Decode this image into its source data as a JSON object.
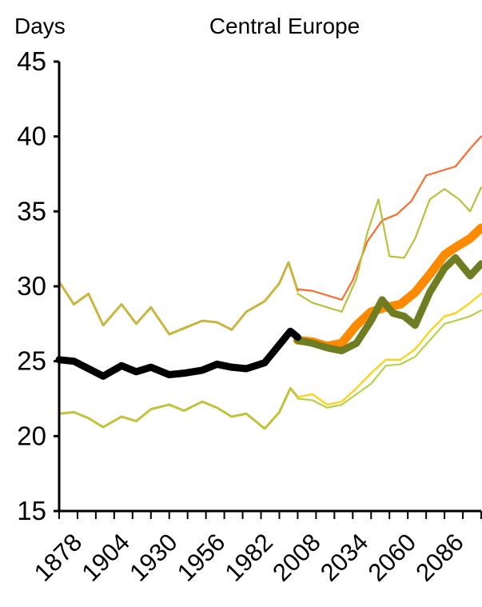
{
  "chart_data": {
    "type": "line",
    "title": "Central Europe",
    "ylabel": "Days",
    "xlabel": "",
    "ylim": [
      15,
      45
    ],
    "xlim": [
      1870,
      2100
    ],
    "y_ticks": [
      15,
      20,
      25,
      30,
      35,
      40,
      45
    ],
    "x_ticks": [
      1878,
      1904,
      1930,
      1956,
      1982,
      2008,
      2034,
      2060,
      2086
    ],
    "grid": false,
    "legend": "none",
    "series": [
      {
        "role": "observed-upper",
        "color": "#c9b540",
        "points": [
          [
            1870,
            30.3
          ],
          [
            1878,
            28.8
          ],
          [
            1886,
            29.5
          ],
          [
            1894,
            27.4
          ],
          [
            1904,
            28.8
          ],
          [
            1912,
            27.5
          ],
          [
            1920,
            28.6
          ],
          [
            1930,
            26.8
          ],
          [
            1938,
            27.2
          ],
          [
            1948,
            27.7
          ],
          [
            1956,
            27.6
          ],
          [
            1964,
            27.1
          ],
          [
            1972,
            28.3
          ],
          [
            1982,
            29.0
          ],
          [
            1990,
            30.2
          ],
          [
            1995,
            31.6
          ],
          [
            2000,
            29.7
          ]
        ]
      },
      {
        "role": "observed-lower",
        "color": "#c2c23a",
        "points": [
          [
            1870,
            21.5
          ],
          [
            1878,
            21.6
          ],
          [
            1886,
            21.2
          ],
          [
            1894,
            20.6
          ],
          [
            1904,
            21.3
          ],
          [
            1912,
            21.0
          ],
          [
            1920,
            21.8
          ],
          [
            1930,
            22.1
          ],
          [
            1938,
            21.7
          ],
          [
            1948,
            22.3
          ],
          [
            1956,
            21.9
          ],
          [
            1964,
            21.3
          ],
          [
            1972,
            21.5
          ],
          [
            1982,
            20.5
          ],
          [
            1990,
            21.6
          ],
          [
            1996,
            23.2
          ],
          [
            2000,
            22.6
          ]
        ]
      },
      {
        "role": "observed-mean",
        "color": "#000000",
        "points": [
          [
            1870,
            25.1
          ],
          [
            1878,
            25.0
          ],
          [
            1886,
            24.5
          ],
          [
            1894,
            24.0
          ],
          [
            1904,
            24.7
          ],
          [
            1912,
            24.3
          ],
          [
            1920,
            24.6
          ],
          [
            1930,
            24.1
          ],
          [
            1938,
            24.2
          ],
          [
            1948,
            24.4
          ],
          [
            1956,
            24.8
          ],
          [
            1964,
            24.6
          ],
          [
            1972,
            24.5
          ],
          [
            1982,
            24.9
          ],
          [
            1990,
            26.1
          ],
          [
            1996,
            27.0
          ],
          [
            2000,
            26.6
          ]
        ]
      },
      {
        "role": "scenario-high-range",
        "color": "#ff6a2c",
        "points": [
          [
            2000,
            29.8
          ],
          [
            2008,
            29.7
          ],
          [
            2016,
            29.4
          ],
          [
            2024,
            29.1
          ],
          [
            2030,
            30.4
          ],
          [
            2038,
            33.0
          ],
          [
            2046,
            34.4
          ],
          [
            2054,
            34.8
          ],
          [
            2062,
            35.7
          ],
          [
            2070,
            37.4
          ],
          [
            2078,
            37.7
          ],
          [
            2086,
            38.0
          ],
          [
            2094,
            39.2
          ],
          [
            2100,
            40.0
          ]
        ]
      },
      {
        "role": "scenario-range-upper",
        "color": "#b7c23a",
        "points": [
          [
            2000,
            29.5
          ],
          [
            2008,
            28.9
          ],
          [
            2016,
            28.6
          ],
          [
            2024,
            28.3
          ],
          [
            2032,
            30.5
          ],
          [
            2038,
            33.6
          ],
          [
            2044,
            35.8
          ],
          [
            2050,
            32.0
          ],
          [
            2058,
            31.9
          ],
          [
            2064,
            33.2
          ],
          [
            2072,
            35.8
          ],
          [
            2080,
            36.5
          ],
          [
            2088,
            35.8
          ],
          [
            2094,
            35.0
          ],
          [
            2100,
            36.6
          ]
        ]
      },
      {
        "role": "scenario-high-mean",
        "color": "#ff8a00",
        "points": [
          [
            2000,
            26.4
          ],
          [
            2008,
            26.3
          ],
          [
            2016,
            26.0
          ],
          [
            2024,
            26.2
          ],
          [
            2032,
            27.4
          ],
          [
            2040,
            28.3
          ],
          [
            2048,
            28.6
          ],
          [
            2056,
            28.8
          ],
          [
            2064,
            29.6
          ],
          [
            2072,
            30.8
          ],
          [
            2080,
            32.1
          ],
          [
            2086,
            32.6
          ],
          [
            2094,
            33.2
          ],
          [
            2100,
            33.9
          ]
        ]
      },
      {
        "role": "scenario-low-mean",
        "color": "#6f7d22",
        "points": [
          [
            2000,
            26.4
          ],
          [
            2008,
            26.2
          ],
          [
            2016,
            25.9
          ],
          [
            2024,
            25.7
          ],
          [
            2032,
            26.2
          ],
          [
            2040,
            27.7
          ],
          [
            2046,
            29.1
          ],
          [
            2052,
            28.2
          ],
          [
            2058,
            28.0
          ],
          [
            2064,
            27.4
          ],
          [
            2072,
            29.6
          ],
          [
            2080,
            31.2
          ],
          [
            2086,
            31.9
          ],
          [
            2094,
            30.7
          ],
          [
            2100,
            31.5
          ]
        ]
      },
      {
        "role": "scenario-range-lower",
        "color": "#ffd21d",
        "points": [
          [
            2000,
            22.6
          ],
          [
            2008,
            22.8
          ],
          [
            2016,
            22.1
          ],
          [
            2024,
            22.3
          ],
          [
            2032,
            23.2
          ],
          [
            2040,
            24.2
          ],
          [
            2048,
            25.1
          ],
          [
            2056,
            25.1
          ],
          [
            2064,
            25.8
          ],
          [
            2072,
            27.0
          ],
          [
            2080,
            28.0
          ],
          [
            2086,
            28.2
          ],
          [
            2094,
            28.9
          ],
          [
            2100,
            29.5
          ]
        ]
      },
      {
        "role": "scenario-range-lowest",
        "color": "#b8d04a",
        "points": [
          [
            2000,
            22.5
          ],
          [
            2008,
            22.4
          ],
          [
            2016,
            21.9
          ],
          [
            2024,
            22.1
          ],
          [
            2032,
            22.8
          ],
          [
            2040,
            23.5
          ],
          [
            2048,
            24.7
          ],
          [
            2056,
            24.8
          ],
          [
            2064,
            25.3
          ],
          [
            2072,
            26.4
          ],
          [
            2080,
            27.5
          ],
          [
            2086,
            27.7
          ],
          [
            2094,
            28.0
          ],
          [
            2100,
            28.4
          ]
        ]
      }
    ]
  }
}
